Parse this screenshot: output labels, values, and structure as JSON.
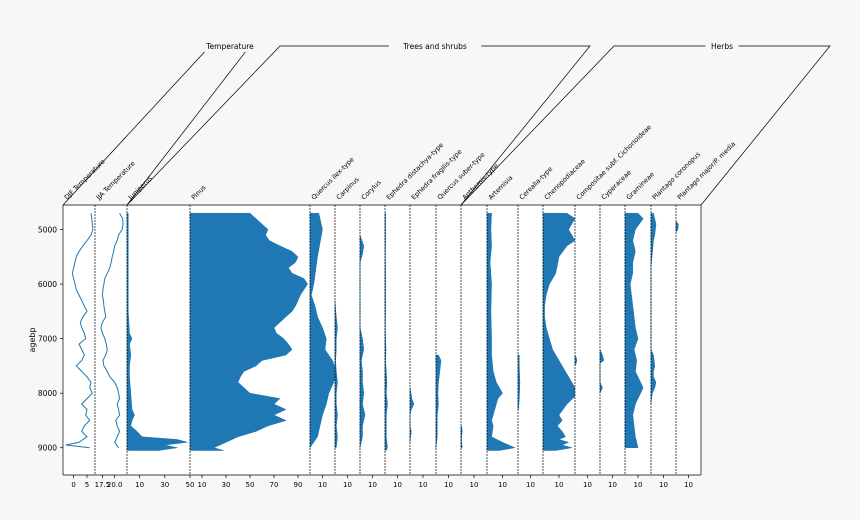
{
  "chart_data": {
    "type": "area",
    "ylabel": "agebp",
    "ylim": [
      9500,
      4550
    ],
    "yticks": [
      5000,
      6000,
      7000,
      8000,
      9000
    ],
    "groups": [
      {
        "label": "Temperature",
        "columns": [
          0,
          1
        ]
      },
      {
        "label": "Trees and shrubs",
        "columns": [
          2,
          9
        ]
      },
      {
        "label": "Herbs",
        "columns": [
          10,
          21
        ]
      }
    ],
    "columns": [
      {
        "name": "DJF Temperature",
        "kind": "line",
        "xlim": [
          -4,
          8
        ],
        "ticks": [
          0,
          5
        ],
        "ages": [
          4700,
          4800,
          4900,
          5000,
          5100,
          5200,
          5300,
          5400,
          5500,
          5600,
          5700,
          5800,
          5900,
          6000,
          6100,
          6200,
          6300,
          6400,
          6500,
          6600,
          6700,
          6800,
          6900,
          7000,
          7100,
          7200,
          7300,
          7400,
          7500,
          7600,
          7700,
          7800,
          7900,
          8000,
          8100,
          8200,
          8300,
          8400,
          8500,
          8600,
          8700,
          8800,
          8900,
          8950,
          9000
        ],
        "values": [
          6.5,
          6.8,
          7,
          7.2,
          6.5,
          5,
          3.5,
          2,
          1,
          0.5,
          0,
          -0.5,
          0,
          0.5,
          1,
          2,
          3,
          4,
          5,
          3.5,
          2.5,
          3,
          4,
          4.5,
          2,
          3,
          4,
          3,
          1,
          3,
          5,
          6.5,
          6,
          7,
          5,
          3,
          5,
          4.5,
          6,
          4,
          3,
          5,
          2,
          -3,
          6
        ]
      },
      {
        "name": "JJA Temperature",
        "kind": "line",
        "xlim": [
          16,
          22.5
        ],
        "ticks": [
          17.5,
          20.0
        ],
        "ages": [
          4700,
          4800,
          4900,
          5000,
          5100,
          5200,
          5300,
          5400,
          5500,
          5600,
          5700,
          5800,
          5900,
          6000,
          6100,
          6200,
          6300,
          6400,
          6500,
          6600,
          6700,
          6800,
          6900,
          7000,
          7100,
          7200,
          7300,
          7400,
          7500,
          7600,
          7700,
          7800,
          7900,
          8000,
          8100,
          8200,
          8300,
          8400,
          8500,
          8600,
          8700,
          8800,
          8900,
          9000
        ],
        "values": [
          21,
          21.6,
          21.7,
          21.5,
          20.8,
          20.5,
          20,
          19.8,
          19.5,
          19.3,
          19,
          18.5,
          18,
          17.8,
          17.6,
          17.5,
          17.7,
          17.8,
          18,
          18.2,
          17.5,
          17.2,
          17.5,
          18,
          18.3,
          18.5,
          18.2,
          17.6,
          17.8,
          18.5,
          19,
          20,
          20.5,
          20.8,
          21,
          20.5,
          20.8,
          21,
          20.2,
          20.5,
          21,
          20.5,
          20,
          20.8
        ]
      },
      {
        "name": "Juniperus",
        "kind": "area",
        "xlim": [
          0,
          50
        ],
        "ticks": [
          10,
          30,
          50
        ],
        "ages": [
          4700,
          5000,
          6000,
          6500,
          6900,
          7000,
          7100,
          7300,
          7500,
          7700,
          8000,
          8300,
          8400,
          8500,
          8600,
          8700,
          8800,
          8850,
          8900,
          8950,
          9000,
          9050
        ],
        "values": [
          1,
          1,
          1,
          1,
          2,
          4,
          2,
          3,
          2,
          2,
          3,
          4,
          6,
          4,
          3,
          8,
          12,
          40,
          48,
          30,
          40,
          25
        ]
      },
      {
        "name": "Pinus",
        "kind": "area",
        "xlim": [
          0,
          100
        ],
        "ticks": [
          10,
          30,
          50,
          70,
          90
        ],
        "ages": [
          4700,
          4800,
          4900,
          5000,
          5100,
          5200,
          5300,
          5400,
          5500,
          5600,
          5700,
          5800,
          5900,
          6000,
          6100,
          6200,
          6300,
          6400,
          6500,
          6600,
          6700,
          6800,
          6900,
          7000,
          7100,
          7200,
          7300,
          7400,
          7500,
          7600,
          7700,
          7800,
          7900,
          8000,
          8100,
          8200,
          8300,
          8400,
          8500,
          8600,
          8700,
          8800,
          8900,
          9000,
          9050
        ],
        "values": [
          50,
          55,
          60,
          65,
          63,
          66,
          75,
          85,
          90,
          88,
          82,
          85,
          95,
          98,
          95,
          92,
          90,
          88,
          85,
          80,
          75,
          70,
          72,
          78,
          82,
          85,
          80,
          60,
          55,
          45,
          42,
          40,
          45,
          50,
          75,
          70,
          80,
          70,
          80,
          65,
          55,
          40,
          30,
          20,
          28
        ]
      },
      {
        "name": "Quercus ilex-type",
        "kind": "area",
        "xlim": [
          0,
          20
        ],
        "ticks": [
          10
        ],
        "ages": [
          4700,
          5000,
          5500,
          6000,
          6200,
          6400,
          6600,
          6800,
          7000,
          7200,
          7400,
          7600,
          7800,
          8000,
          8200,
          8400,
          8600,
          8800,
          9000
        ],
        "values": [
          7,
          10,
          6,
          3,
          1,
          4,
          6,
          10,
          13,
          12,
          18,
          21,
          19,
          15,
          13,
          10,
          8,
          6,
          0
        ]
      },
      {
        "name": "Carpinus",
        "kind": "area",
        "xlim": [
          0,
          20
        ],
        "ticks": [
          10
        ],
        "ages": [
          6300,
          6600,
          6800,
          7000,
          7200,
          7400,
          7600,
          7800,
          8000,
          8200,
          8400,
          8600,
          8800,
          9000
        ],
        "values": [
          0,
          1,
          2,
          1,
          1,
          0.5,
          1,
          2,
          1,
          1,
          2,
          1,
          2,
          1
        ]
      },
      {
        "name": "Corylus",
        "kind": "area",
        "xlim": [
          0,
          20
        ],
        "ticks": [
          10
        ],
        "ages": [
          5100,
          5300,
          5450,
          5600,
          6800,
          7000,
          7200,
          7400,
          7600,
          7800,
          8000,
          8200,
          8400,
          8600,
          8800,
          9000
        ],
        "values": [
          0,
          3,
          2,
          0,
          0,
          2,
          3,
          1,
          2,
          2,
          3,
          2,
          4,
          2,
          2,
          0
        ]
      },
      {
        "name": "Ephedra distachya-type",
        "kind": "area",
        "xlim": [
          0,
          20
        ],
        "ticks": [
          10
        ],
        "ages": [
          4700,
          5000,
          5200,
          5500,
          5700,
          6500,
          6800,
          7000,
          7200,
          7400,
          7600,
          7800,
          8000,
          8200,
          8400,
          8600,
          8800,
          9000,
          9050
        ],
        "values": [
          0.5,
          0.5,
          0.5,
          0.3,
          0.5,
          0.5,
          0.3,
          0.5,
          0.8,
          0.5,
          1,
          1.5,
          1,
          2,
          1,
          1,
          1,
          2,
          1
        ]
      },
      {
        "name": "Ephedra fragilis-type",
        "kind": "area",
        "xlim": [
          0,
          20
        ],
        "ticks": [
          10
        ],
        "ages": [
          7900,
          8100,
          8200,
          8300,
          8400,
          8600,
          8700,
          8900
        ],
        "values": [
          0,
          1.5,
          3,
          1,
          0,
          0,
          1,
          0
        ]
      },
      {
        "name": "Quercus suber-type",
        "kind": "area",
        "xlim": [
          0,
          20
        ],
        "ticks": [
          10
        ],
        "ages": [
          7300,
          7400,
          7600,
          7800,
          8000,
          8200,
          8400,
          8600,
          8800,
          9000
        ],
        "values": [
          2,
          4,
          3,
          2,
          1.5,
          2,
          1,
          1,
          1,
          0
        ]
      },
      {
        "name": "Anthemis-type",
        "kind": "area",
        "xlim": [
          0,
          20
        ],
        "ticks": [
          10
        ],
        "ages": [
          8600,
          8700,
          8800,
          8900,
          9000
        ],
        "values": [
          0.5,
          1,
          0.5,
          0.5,
          1
        ]
      },
      {
        "name": "Artemisia",
        "kind": "area",
        "xlim": [
          0,
          20
        ],
        "ticks": [
          10
        ],
        "ages": [
          4700,
          5000,
          5300,
          5600,
          6000,
          6500,
          7000,
          7300,
          7600,
          7800,
          7900,
          8000,
          8100,
          8300,
          8500,
          8600,
          8800,
          8900,
          9000,
          9050
        ],
        "values": [
          3,
          2.5,
          3,
          2,
          3,
          2.5,
          3,
          3,
          4,
          6,
          8,
          10,
          7,
          5,
          3,
          4,
          3,
          10,
          18,
          8
        ]
      },
      {
        "name": "Cerealia-type",
        "kind": "area",
        "xlim": [
          0,
          20
        ],
        "ticks": [
          10
        ],
        "ages": [
          7300,
          7500,
          7800,
          8100,
          8300
        ],
        "values": [
          1,
          1,
          1.5,
          1,
          0.5
        ]
      },
      {
        "name": "Chenopodiaceae",
        "kind": "area",
        "xlim": [
          0,
          20
        ],
        "ticks": [
          10
        ],
        "ages": [
          4700,
          4800,
          4900,
          5000,
          5100,
          5200,
          5300,
          5500,
          5800,
          6000,
          6200,
          6400,
          6600,
          6800,
          7000,
          7200,
          7400,
          7600,
          7700,
          7800,
          7900,
          8000,
          8200,
          8400,
          8500,
          8600,
          8700,
          8800,
          8850,
          8900,
          8950,
          9000,
          9050
        ],
        "values": [
          15,
          20,
          18,
          16,
          18,
          20,
          15,
          10,
          8,
          4,
          2,
          1,
          1,
          2,
          4,
          6,
          10,
          14,
          16,
          18,
          20,
          22,
          15,
          10,
          12,
          9,
          12,
          14,
          10,
          16,
          12,
          18,
          8
        ]
      },
      {
        "name": "Compositae subf. Cichorioideae",
        "kind": "area",
        "xlim": [
          0,
          20
        ],
        "ticks": [
          10
        ],
        "ages": [
          7300,
          7350,
          7400,
          7450,
          7500
        ],
        "values": [
          0,
          1,
          1.5,
          1,
          0
        ]
      },
      {
        "name": "Cyperaceae",
        "kind": "area",
        "xlim": [
          0,
          20
        ],
        "ticks": [
          10
        ],
        "ages": [
          7200,
          7300,
          7400,
          7450,
          7800,
          7900,
          8000
        ],
        "values": [
          0,
          2,
          3,
          0,
          0,
          2,
          0
        ]
      },
      {
        "name": "Gramineae",
        "kind": "area",
        "xlim": [
          0,
          20
        ],
        "ticks": [
          10
        ],
        "ages": [
          4700,
          4800,
          5000,
          5200,
          5400,
          5600,
          5800,
          6000,
          6200,
          6400,
          6600,
          6800,
          7000,
          7200,
          7400,
          7600,
          7800,
          7900,
          8000,
          8100,
          8200,
          8400,
          8600,
          8800,
          9000
        ],
        "values": [
          10,
          14,
          8,
          6,
          8,
          6,
          6,
          4,
          5,
          6,
          7,
          8,
          10,
          7,
          9,
          8,
          12,
          14,
          12,
          10,
          8,
          6,
          7,
          8,
          10
        ]
      },
      {
        "name": "Plantago coronopus",
        "kind": "area",
        "xlim": [
          0,
          20
        ],
        "ticks": [
          10
        ],
        "ages": [
          4700,
          4900,
          5100,
          5200,
          5700,
          7200,
          7300,
          7500,
          7600,
          7700,
          7800,
          7900,
          8000,
          8100,
          8200
        ],
        "values": [
          2,
          4,
          3,
          2,
          0,
          0,
          2,
          3,
          2,
          2,
          4,
          3,
          1,
          0.5,
          0
        ]
      },
      {
        "name": "Plantago major/P. media",
        "kind": "area",
        "xlim": [
          0,
          20
        ],
        "ticks": [
          10
        ],
        "ages": [
          4850,
          4900,
          5000,
          5050
        ],
        "values": [
          0,
          2,
          1.5,
          0
        ]
      }
    ]
  }
}
